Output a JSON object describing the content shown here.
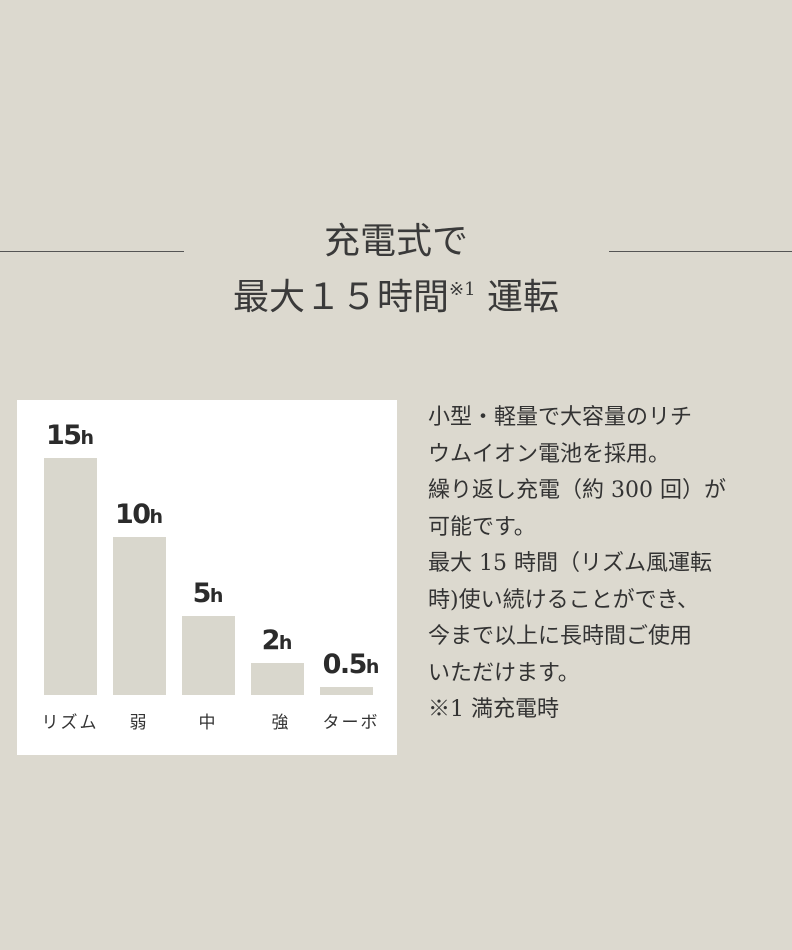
{
  "heading": {
    "line1": "充電式で",
    "line2_pre": "最大１５時間",
    "line2_sup": "※1",
    "line2_post": " 運転"
  },
  "chart_data": {
    "type": "bar",
    "categories": [
      "リズム",
      "弱",
      "中",
      "強",
      "ターボ"
    ],
    "values": [
      15,
      10,
      5,
      2,
      0.5
    ],
    "value_labels": [
      "15",
      "10",
      "5",
      "2",
      "0.5"
    ],
    "unit": "h",
    "ylim": [
      0,
      15
    ],
    "grid": false,
    "bar_color": "#d9d7cd"
  },
  "description": [
    "小型・軽量で大容量のリチ",
    "ウムイオン電池を採用。",
    "繰り返し充電（約 300 回）が",
    "可能です。",
    "最大 15 時間（リズム風運転",
    "時)使い続けることができ、",
    "今まで以上に長時間ご使用",
    "いただけます。",
    "※1 満充電時"
  ],
  "colors": {
    "background": "#dcd9cf",
    "panel": "#ffffff",
    "text": "#333333"
  }
}
